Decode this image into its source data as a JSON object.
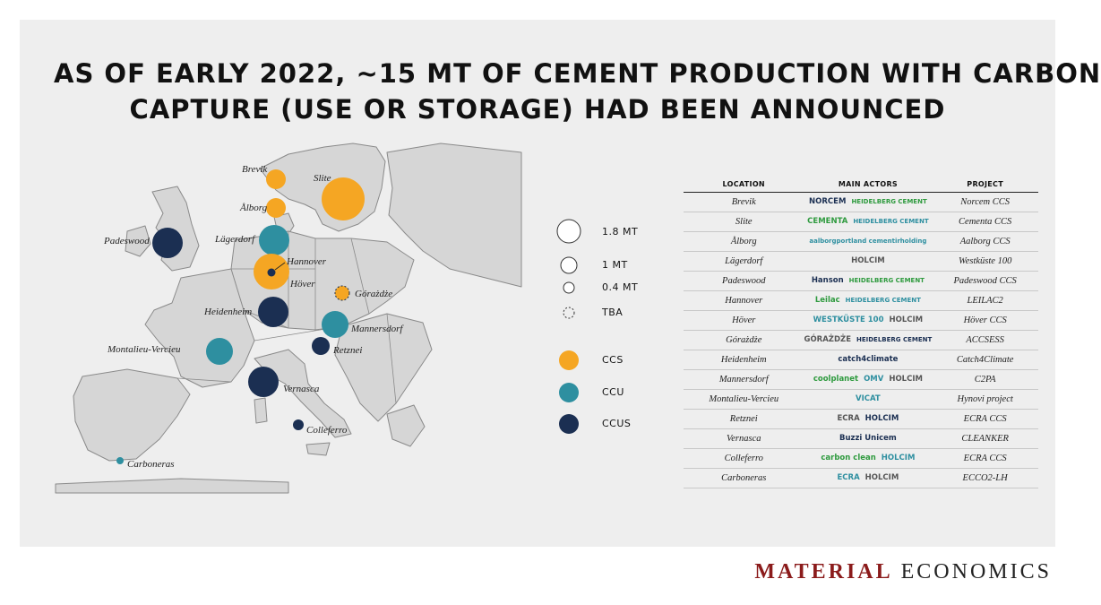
{
  "title": {
    "line1": "AS OF EARLY 2022, ~15 MT OF CEMENT PRODUCTION WITH CARBON",
    "line2": "CAPTURE (USE OR STORAGE) HAD BEEN ANNOUNCED"
  },
  "colors": {
    "ccs": "#f5a623",
    "ccu": "#2e8fa0",
    "ccus": "#1b2f52",
    "brand": "#8b1b1b"
  },
  "map": {
    "cities": [
      {
        "name": "Brevik",
        "type": "CCS"
      },
      {
        "name": "Slite",
        "type": "CCS"
      },
      {
        "name": "Ålborg",
        "type": "CCS"
      },
      {
        "name": "Padeswood",
        "type": "CCUS"
      },
      {
        "name": "Lägerdorf",
        "type": "CCU"
      },
      {
        "name": "Hannover",
        "type": "CCS"
      },
      {
        "name": "Höver",
        "type": "CCUS"
      },
      {
        "name": "Górażdże",
        "type": "CCS"
      },
      {
        "name": "Heidenheim",
        "type": "CCUS"
      },
      {
        "name": "Mannersdorf",
        "type": "CCU"
      },
      {
        "name": "Montalieu-Vercieu",
        "type": "CCU"
      },
      {
        "name": "Retznei",
        "type": "CCUS"
      },
      {
        "name": "Vernasca",
        "type": "CCUS"
      },
      {
        "name": "Colleferro",
        "type": "CCUS"
      },
      {
        "name": "Carboneras",
        "type": "CCU"
      }
    ]
  },
  "legend": {
    "sizes": [
      "1.8 MT",
      "1 MT",
      "0.4 MT",
      "TBA"
    ],
    "types": [
      "CCS",
      "CCU",
      "CCUS"
    ]
  },
  "table": {
    "headers": [
      "LOCATION",
      "MAIN ACTORS",
      "PROJECT"
    ],
    "rows": [
      {
        "location": "Brevik",
        "actors": [
          "NORCEM",
          "HEIDELBERG CEMENT"
        ],
        "project": "Norcem CCS"
      },
      {
        "location": "Slite",
        "actors": [
          "CEMENTA",
          "HEIDELBERG CEMENT"
        ],
        "project": "Cementa CCS"
      },
      {
        "location": "Ålborg",
        "actors": [
          "aalborgportland cementirholding"
        ],
        "project": "Aalborg CCS"
      },
      {
        "location": "Lägerdorf",
        "actors": [
          "HOLCIM"
        ],
        "project": "Westküste 100"
      },
      {
        "location": "Padeswood",
        "actors": [
          "Hanson",
          "HEIDELBERG CEMENT"
        ],
        "project": "Padeswood CCS"
      },
      {
        "location": "Hannover",
        "actors": [
          "Leilac",
          "HEIDELBERG CEMENT"
        ],
        "project": "LEILAC2"
      },
      {
        "location": "Höver",
        "actors": [
          "WESTKÜSTE 100",
          "HOLCIM"
        ],
        "project": "Höver CCS"
      },
      {
        "location": "Górażdże",
        "actors": [
          "GÓRAŻDŻE",
          "HEIDELBERG CEMENT"
        ],
        "project": "ACCSESS"
      },
      {
        "location": "Heidenheim",
        "actors": [
          "catch4climate"
        ],
        "project": "Catch4Climate"
      },
      {
        "location": "Mannersdorf",
        "actors": [
          "coolplanet",
          "OMV",
          "HOLCIM"
        ],
        "project": "C2PA"
      },
      {
        "location": "Montalieu-Vercieu",
        "actors": [
          "VICAT"
        ],
        "project": "Hynovi project"
      },
      {
        "location": "Retznei",
        "actors": [
          "ECRA",
          "HOLCIM"
        ],
        "project": "ECRA CCS"
      },
      {
        "location": "Vernasca",
        "actors": [
          "Buzzi Unicem"
        ],
        "project": "CLEANKER"
      },
      {
        "location": "Colleferro",
        "actors": [
          "carbon clean",
          "HOLCIM"
        ],
        "project": "ECRA CCS"
      },
      {
        "location": "Carboneras",
        "actors": [
          "ECRA",
          "HOLCIM"
        ],
        "project": "ECCO2-LH"
      }
    ]
  },
  "footer": {
    "part1": "MATERIAL",
    "part2": "ECONOMICS"
  }
}
